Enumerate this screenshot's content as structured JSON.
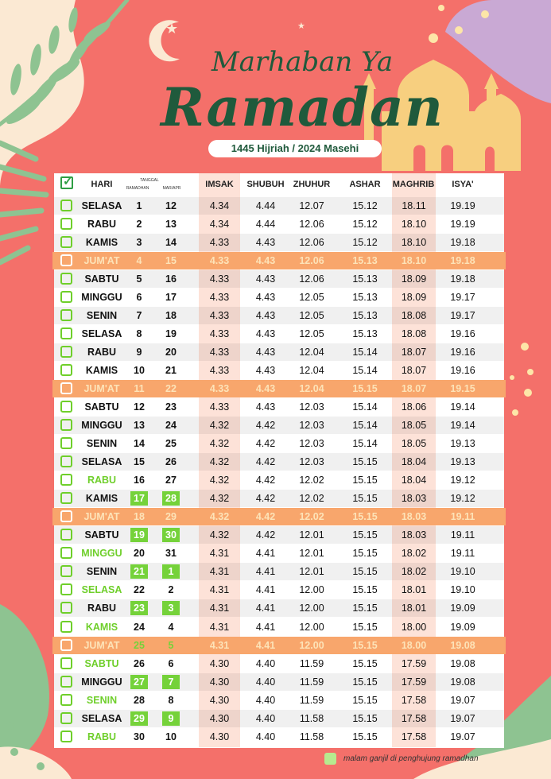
{
  "header": {
    "title_line1": "Marhaban Ya",
    "title_line2": "Ramadan",
    "subtitle": "1445 Hijriah / 2024 Masehi"
  },
  "columns": {
    "hari": "HARI",
    "tanggal": "TANGGAL",
    "ramadhan": "RAMADHAN",
    "mar_apr": "MAR/APR",
    "imsak": "IMSAK",
    "shubuh": "SHUBUH",
    "zhuhur": "ZHUHUR",
    "ashar": "ASHAR",
    "maghrib": "MAGHRIB",
    "isya": "ISYA'"
  },
  "colors": {
    "background": "#f4706a",
    "green_title": "#1f5a3c",
    "jumat_row": "#f8a66c",
    "highlight_green": "#75d23a",
    "time_column": "#fde2d8"
  },
  "rows": [
    {
      "hari": "SELASA",
      "ram": "1",
      "mas": "12",
      "imsak": "4.34",
      "shubuh": "4.44",
      "zhuhur": "12.07",
      "ashar": "15.12",
      "maghrib": "18.11",
      "isya": "19.19"
    },
    {
      "hari": "RABU",
      "ram": "2",
      "mas": "13",
      "imsak": "4.34",
      "shubuh": "4.44",
      "zhuhur": "12.06",
      "ashar": "15.12",
      "maghrib": "18.10",
      "isya": "19.19"
    },
    {
      "hari": "KAMIS",
      "ram": "3",
      "mas": "14",
      "imsak": "4.33",
      "shubuh": "4.43",
      "zhuhur": "12.06",
      "ashar": "15.12",
      "maghrib": "18.10",
      "isya": "19.18"
    },
    {
      "hari": "JUM'AT",
      "ram": "4",
      "mas": "15",
      "imsak": "4.33",
      "shubuh": "4.43",
      "zhuhur": "12.06",
      "ashar": "15.13",
      "maghrib": "18.10",
      "isya": "19.18",
      "jumat": true
    },
    {
      "hari": "SABTU",
      "ram": "5",
      "mas": "16",
      "imsak": "4.33",
      "shubuh": "4.43",
      "zhuhur": "12.06",
      "ashar": "15.13",
      "maghrib": "18.09",
      "isya": "19.18"
    },
    {
      "hari": "MINGGU",
      "ram": "6",
      "mas": "17",
      "imsak": "4.33",
      "shubuh": "4.43",
      "zhuhur": "12.05",
      "ashar": "15.13",
      "maghrib": "18.09",
      "isya": "19.17"
    },
    {
      "hari": "SENIN",
      "ram": "7",
      "mas": "18",
      "imsak": "4.33",
      "shubuh": "4.43",
      "zhuhur": "12.05",
      "ashar": "15.13",
      "maghrib": "18.08",
      "isya": "19.17"
    },
    {
      "hari": "SELASA",
      "ram": "8",
      "mas": "19",
      "imsak": "4.33",
      "shubuh": "4.43",
      "zhuhur": "12.05",
      "ashar": "15.13",
      "maghrib": "18.08",
      "isya": "19.16"
    },
    {
      "hari": "RABU",
      "ram": "9",
      "mas": "20",
      "imsak": "4.33",
      "shubuh": "4.43",
      "zhuhur": "12.04",
      "ashar": "15.14",
      "maghrib": "18.07",
      "isya": "19.16"
    },
    {
      "hari": "KAMIS",
      "ram": "10",
      "mas": "21",
      "imsak": "4.33",
      "shubuh": "4.43",
      "zhuhur": "12.04",
      "ashar": "15.14",
      "maghrib": "18.07",
      "isya": "19.16"
    },
    {
      "hari": "JUM'AT",
      "ram": "11",
      "mas": "22",
      "imsak": "4.33",
      "shubuh": "4.43",
      "zhuhur": "12.04",
      "ashar": "15.15",
      "maghrib": "18.07",
      "isya": "19.15",
      "jumat": true
    },
    {
      "hari": "SABTU",
      "ram": "12",
      "mas": "23",
      "imsak": "4.33",
      "shubuh": "4.43",
      "zhuhur": "12.03",
      "ashar": "15.14",
      "maghrib": "18.06",
      "isya": "19.14"
    },
    {
      "hari": "MINGGU",
      "ram": "13",
      "mas": "24",
      "imsak": "4.32",
      "shubuh": "4.42",
      "zhuhur": "12.03",
      "ashar": "15.14",
      "maghrib": "18.05",
      "isya": "19.14"
    },
    {
      "hari": "SENIN",
      "ram": "14",
      "mas": "25",
      "imsak": "4.32",
      "shubuh": "4.42",
      "zhuhur": "12.03",
      "ashar": "15.14",
      "maghrib": "18.05",
      "isya": "19.13"
    },
    {
      "hari": "SELASA",
      "ram": "15",
      "mas": "26",
      "imsak": "4.32",
      "shubuh": "4.42",
      "zhuhur": "12.03",
      "ashar": "15.15",
      "maghrib": "18.04",
      "isya": "19.13"
    },
    {
      "hari": "RABU",
      "ram": "16",
      "mas": "27",
      "imsak": "4.32",
      "shubuh": "4.42",
      "zhuhur": "12.02",
      "ashar": "15.15",
      "maghrib": "18.04",
      "isya": "19.12",
      "green_day": true
    },
    {
      "hari": "KAMIS",
      "ram": "17",
      "mas": "28",
      "imsak": "4.32",
      "shubuh": "4.42",
      "zhuhur": "12.02",
      "ashar": "15.15",
      "maghrib": "18.03",
      "isya": "19.12",
      "odd": true
    },
    {
      "hari": "JUM'AT",
      "ram": "18",
      "mas": "29",
      "imsak": "4.32",
      "shubuh": "4.42",
      "zhuhur": "12.02",
      "ashar": "15.15",
      "maghrib": "18.03",
      "isya": "19.11",
      "jumat": true,
      "green_day": true
    },
    {
      "hari": "SABTU",
      "ram": "19",
      "mas": "30",
      "imsak": "4.32",
      "shubuh": "4.42",
      "zhuhur": "12.01",
      "ashar": "15.15",
      "maghrib": "18.03",
      "isya": "19.11",
      "odd": true
    },
    {
      "hari": "MINGGU",
      "ram": "20",
      "mas": "31",
      "imsak": "4.31",
      "shubuh": "4.41",
      "zhuhur": "12.01",
      "ashar": "15.15",
      "maghrib": "18.02",
      "isya": "19.11",
      "green_day": true
    },
    {
      "hari": "SENIN",
      "ram": "21",
      "mas": "1",
      "imsak": "4.31",
      "shubuh": "4.41",
      "zhuhur": "12.01",
      "ashar": "15.15",
      "maghrib": "18.02",
      "isya": "19.10",
      "odd": true
    },
    {
      "hari": "SELASA",
      "ram": "22",
      "mas": "2",
      "imsak": "4.31",
      "shubuh": "4.41",
      "zhuhur": "12.00",
      "ashar": "15.15",
      "maghrib": "18.01",
      "isya": "19.10",
      "green_day": true
    },
    {
      "hari": "RABU",
      "ram": "23",
      "mas": "3",
      "imsak": "4.31",
      "shubuh": "4.41",
      "zhuhur": "12.00",
      "ashar": "15.15",
      "maghrib": "18.01",
      "isya": "19.09",
      "odd": true
    },
    {
      "hari": "KAMIS",
      "ram": "24",
      "mas": "4",
      "imsak": "4.31",
      "shubuh": "4.41",
      "zhuhur": "12.00",
      "ashar": "15.15",
      "maghrib": "18.00",
      "isya": "19.09",
      "green_day": true
    },
    {
      "hari": "JUM'AT",
      "ram": "25",
      "mas": "5",
      "imsak": "4.31",
      "shubuh": "4.41",
      "zhuhur": "12.00",
      "ashar": "15.15",
      "maghrib": "18.00",
      "isya": "19.08",
      "jumat": true,
      "odd": true
    },
    {
      "hari": "SABTU",
      "ram": "26",
      "mas": "6",
      "imsak": "4.30",
      "shubuh": "4.40",
      "zhuhur": "11.59",
      "ashar": "15.15",
      "maghrib": "17.59",
      "isya": "19.08",
      "green_day": true
    },
    {
      "hari": "MINGGU",
      "ram": "27",
      "mas": "7",
      "imsak": "4.30",
      "shubuh": "4.40",
      "zhuhur": "11.59",
      "ashar": "15.15",
      "maghrib": "17.59",
      "isya": "19.08",
      "odd": true
    },
    {
      "hari": "SENIN",
      "ram": "28",
      "mas": "8",
      "imsak": "4.30",
      "shubuh": "4.40",
      "zhuhur": "11.59",
      "ashar": "15.15",
      "maghrib": "17.58",
      "isya": "19.07",
      "green_day": true
    },
    {
      "hari": "SELASA",
      "ram": "29",
      "mas": "9",
      "imsak": "4.30",
      "shubuh": "4.40",
      "zhuhur": "11.58",
      "ashar": "15.15",
      "maghrib": "17.58",
      "isya": "19.07",
      "odd": true
    },
    {
      "hari": "RABU",
      "ram": "30",
      "mas": "10",
      "imsak": "4.30",
      "shubuh": "4.40",
      "zhuhur": "11.58",
      "ashar": "15.15",
      "maghrib": "17.58",
      "isya": "19.07",
      "green_day": true
    }
  ],
  "legend": {
    "text": "malam ganjil di penghujung ramadhan"
  }
}
